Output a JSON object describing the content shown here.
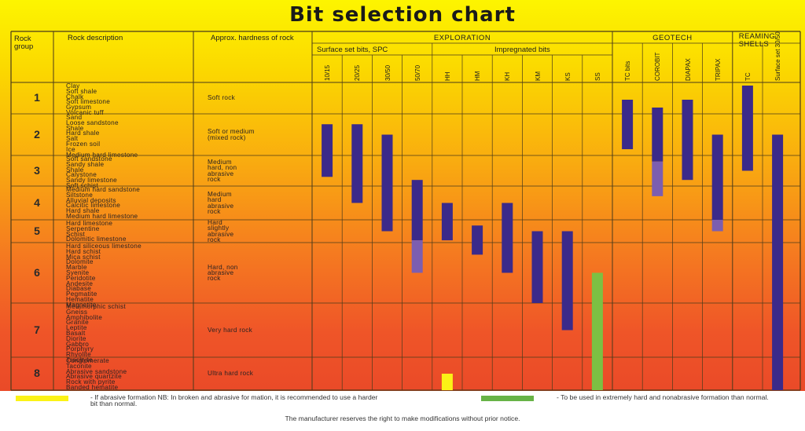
{
  "chart_data": {
    "type": "table",
    "title": "Bit selection chart",
    "headers": {
      "rock_group": "Rock group",
      "rock_description": "Rock description",
      "hardness": "Approx. hardness of rock",
      "exploration": "EXPLORATION",
      "surface_set": "Surface set bits, SPC",
      "impregnated": "Impregnated bits",
      "geotech": "GEOTECH",
      "reaming": "REAMING SHELLS"
    },
    "bit_columns": [
      "10/15",
      "20/25",
      "30/50",
      "50/70",
      "HH",
      "HM",
      "KH",
      "KM",
      "KS",
      "SS",
      "TC bits",
      "COROBIT",
      "DIAPAX",
      "TRIPAX",
      "TC",
      "Surface set 30/50"
    ],
    "groups": [
      {
        "number": "1",
        "rocks": [
          "Clay",
          "Soft shale",
          "Chalk",
          "Soft limestone",
          "Gypsum",
          "Volcanic tuff"
        ],
        "hardness": [
          "Soft rock"
        ]
      },
      {
        "number": "2",
        "rocks": [
          "Sand",
          "Loose sandstone",
          "Shale",
          "Hard shale",
          "Salt",
          "Frozen soil",
          "Ice",
          "Medium hard limestone"
        ],
        "hardness": [
          "Soft or medium",
          "(mixed rock)"
        ]
      },
      {
        "number": "3",
        "rocks": [
          "Soft sandstone",
          "Sandy shale",
          "Shale",
          "Calystone",
          "Sandy limestone",
          "Soft schist"
        ],
        "hardness": [
          "Medium",
          "hard, non",
          "abrasive",
          "rock"
        ]
      },
      {
        "number": "4",
        "rocks": [
          "Medium hard sandstone",
          "Siltstone",
          "Alluvial deposits",
          "Calcitic limestone",
          "Hard shale",
          "Medium hard limestone"
        ],
        "hardness": [
          "Medium",
          "hard",
          "abrasive",
          "rock"
        ]
      },
      {
        "number": "5",
        "rocks": [
          "Hard limestone",
          "Serpentine",
          "Schist",
          "Dolomitic limestone"
        ],
        "hardness": [
          "Hard",
          "slightly",
          "abrasive",
          "rock"
        ]
      },
      {
        "number": "6",
        "rocks": [
          "Hard siliceous limestone",
          "Hard schist",
          "Mica schist",
          "Dolomite",
          "Marble",
          "Syenite",
          "Peridotite",
          "Andesite",
          "Diabase",
          "Pegmatite",
          "Hematite",
          "Magnetite"
        ],
        "hardness": [
          "Hard, non",
          "abrasive",
          "rock"
        ]
      },
      {
        "number": "7",
        "rocks": [
          "Metamorphic schist",
          "Gneiss",
          "Amphibolite",
          "Granite",
          "Leptite",
          "Basalt",
          "Diorite",
          "Gabbro",
          "Porphyry",
          "Rhyolite",
          "Trachyte"
        ],
        "hardness": [
          "Very hard rock"
        ]
      },
      {
        "number": "8",
        "rocks": [
          "Conglomerate",
          "Taconite",
          "Abrasive sandstone",
          "Abrasive quartzite",
          "Rock with pyrite",
          "Banded hematite"
        ],
        "hardness": [
          "Ultra hard rock"
        ]
      }
    ],
    "ranges": [
      {
        "bit": "10/15",
        "from": 1.75,
        "to": 3.2,
        "kind": "main"
      },
      {
        "bit": "20/25",
        "from": 1.75,
        "to": 4.0,
        "kind": "main"
      },
      {
        "bit": "30/50",
        "from": 2.0,
        "to": 5.0,
        "kind": "main"
      },
      {
        "bit": "50/70",
        "from": 3.3,
        "to": 5.4,
        "kind": "main"
      },
      {
        "bit": "50/70",
        "from": 5.4,
        "to": 6.0,
        "kind": "light"
      },
      {
        "bit": "HH",
        "from": 4.0,
        "to": 5.4,
        "kind": "main"
      },
      {
        "bit": "HM",
        "from": 4.75,
        "to": 5.7,
        "kind": "main"
      },
      {
        "bit": "KH",
        "from": 4.0,
        "to": 6.0,
        "kind": "main"
      },
      {
        "bit": "KM",
        "from": 5.0,
        "to": 6.5,
        "kind": "main"
      },
      {
        "bit": "KS",
        "from": 5.0,
        "to": 7.0,
        "kind": "main"
      },
      {
        "bit": "SS",
        "from": 6.0,
        "to": 8.5,
        "kind": "green"
      },
      {
        "bit": "HH",
        "from": 8.0,
        "to": 8.5,
        "kind": "yellow"
      },
      {
        "bit": "TC bits",
        "from": 1.05,
        "to": 2.35,
        "kind": "main"
      },
      {
        "bit": "COROBIT",
        "from": 1.3,
        "to": 2.7,
        "kind": "main"
      },
      {
        "bit": "COROBIT",
        "from": 2.7,
        "to": 3.8,
        "kind": "light"
      },
      {
        "bit": "DIAPAX",
        "from": 1.05,
        "to": 3.3,
        "kind": "main"
      },
      {
        "bit": "TRIPAX",
        "from": 2.0,
        "to": 4.5,
        "kind": "main"
      },
      {
        "bit": "TRIPAX",
        "from": 4.5,
        "to": 5.0,
        "kind": "light"
      },
      {
        "bit": "TC",
        "from": 0.6,
        "to": 3.0,
        "kind": "main"
      },
      {
        "bit": "Surface set 30/50",
        "from": 2.0,
        "to": 8.5,
        "kind": "main"
      }
    ],
    "legend": [
      {
        "color": "#fbf216",
        "text": "- If abrasive formation NB: In broken and abrasive for mation, it is recommended to use a harder bit than normal."
      },
      {
        "color": "#67b346",
        "text": "- To be used in extremely hard and nonabrasive formation than normal."
      }
    ]
  },
  "colors": {
    "bar_main": "#3b2a8a",
    "bar_light": "#7c5eb0",
    "bar_green": "#7cc043",
    "bar_yellow": "#fbf216",
    "grid_line": "#4a3a1a"
  },
  "footer": {
    "note": "The manufacturer reserves the right to make modifications without prior notice."
  }
}
